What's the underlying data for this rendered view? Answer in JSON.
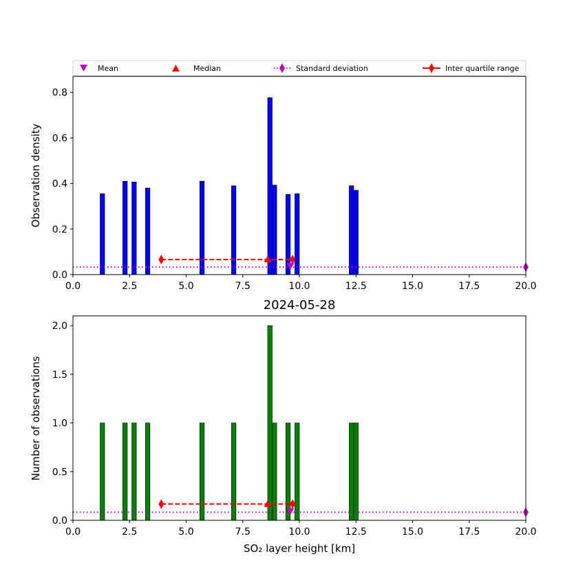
{
  "colors": {
    "density_bar": "#0000ff",
    "count_bar": "#008000",
    "mean": "#bf00bf",
    "median": "#ff0000",
    "stddev": "#bf00bf",
    "iqr": "#ff0000"
  },
  "legend": {
    "mean": "Mean",
    "median": "Median",
    "stddev": "Standard deviation",
    "iqr": "Inter quartile range"
  },
  "chart_data": [
    {
      "type": "bar",
      "title": "",
      "xlabel": "",
      "ylabel": "Observation density",
      "xlim": [
        0,
        20
      ],
      "ylim": [
        0,
        0.87
      ],
      "xticks": [
        "0.0",
        "2.5",
        "5.0",
        "7.5",
        "10.0",
        "12.5",
        "15.0",
        "17.5",
        "20.0"
      ],
      "yticks": [
        "0.0",
        "0.2",
        "0.4",
        "0.6",
        "0.8"
      ],
      "bar_width": 0.2,
      "bars": [
        {
          "x": 1.3,
          "value": 0.355
        },
        {
          "x": 2.3,
          "value": 0.41
        },
        {
          "x": 2.7,
          "value": 0.407
        },
        {
          "x": 3.3,
          "value": 0.38
        },
        {
          "x": 5.7,
          "value": 0.41
        },
        {
          "x": 7.1,
          "value": 0.39
        },
        {
          "x": 8.7,
          "value": 0.777
        },
        {
          "x": 8.9,
          "value": 0.393
        },
        {
          "x": 9.5,
          "value": 0.352
        },
        {
          "x": 9.9,
          "value": 0.355
        },
        {
          "x": 12.3,
          "value": 0.39
        },
        {
          "x": 12.5,
          "value": 0.37
        }
      ],
      "mean": {
        "x": 9.6,
        "y": 0.036
      },
      "median": {
        "x": 8.6,
        "y": 0.066
      },
      "stddev": {
        "x": [
          0,
          20
        ],
        "y": 0.033
      },
      "iqr": {
        "x": [
          3.9,
          9.7
        ],
        "y": 0.066
      },
      "legend_placement": "top"
    },
    {
      "type": "bar",
      "title": "2024-05-28",
      "xlabel": "SO₂ layer height [km]",
      "ylabel": "Number of observations",
      "xlim": [
        0,
        20
      ],
      "ylim": [
        0,
        2.1
      ],
      "xticks": [
        "0.0",
        "2.5",
        "5.0",
        "7.5",
        "10.0",
        "12.5",
        "15.0",
        "17.5",
        "20.0"
      ],
      "yticks": [
        "0.0",
        "0.5",
        "1.0",
        "1.5",
        "2.0"
      ],
      "bar_width": 0.2,
      "bars": [
        {
          "x": 1.3,
          "value": 1
        },
        {
          "x": 2.3,
          "value": 1
        },
        {
          "x": 2.7,
          "value": 1
        },
        {
          "x": 3.3,
          "value": 1
        },
        {
          "x": 5.7,
          "value": 1
        },
        {
          "x": 7.1,
          "value": 1
        },
        {
          "x": 8.7,
          "value": 2
        },
        {
          "x": 8.9,
          "value": 1
        },
        {
          "x": 9.5,
          "value": 1
        },
        {
          "x": 9.9,
          "value": 1
        },
        {
          "x": 12.3,
          "value": 1
        },
        {
          "x": 12.5,
          "value": 1
        }
      ],
      "mean": {
        "x": 9.6,
        "y": 0.09
      },
      "median": {
        "x": 8.6,
        "y": 0.165
      },
      "stddev": {
        "x": [
          0,
          20
        ],
        "y": 0.083
      },
      "iqr": {
        "x": [
          3.9,
          9.7
        ],
        "y": 0.167
      }
    }
  ]
}
